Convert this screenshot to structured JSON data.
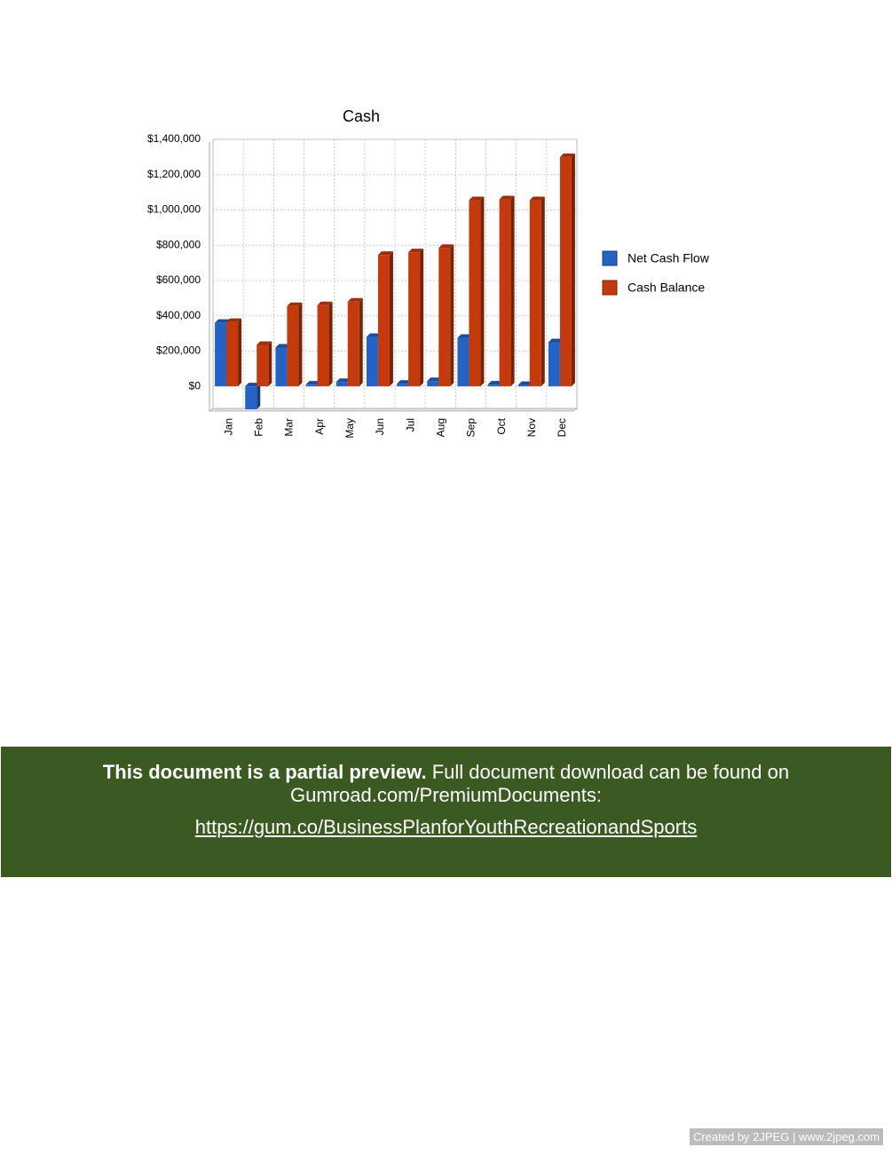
{
  "chart_data": {
    "type": "bar",
    "title": "Cash",
    "categories": [
      "Jan",
      "Feb",
      "Mar",
      "Apr",
      "May",
      "Jun",
      "Jul",
      "Aug",
      "Sep",
      "Oct",
      "Nov",
      "Dec"
    ],
    "series": [
      {
        "name": "Net Cash Flow",
        "color": "#2462c4",
        "values": [
          360000,
          -130000,
          220000,
          10000,
          25000,
          280000,
          15000,
          30000,
          275000,
          10000,
          8000,
          250000
        ]
      },
      {
        "name": "Cash Balance",
        "color": "#c43a0c",
        "values": [
          365000,
          235000,
          455000,
          460000,
          480000,
          745000,
          760000,
          785000,
          1055000,
          1060000,
          1055000,
          1300000
        ]
      }
    ],
    "ylim": [
      -130000,
      1400000
    ],
    "yticks": [
      {
        "value": 0,
        "label": "$0"
      },
      {
        "value": 200000,
        "label": "$200,000"
      },
      {
        "value": 400000,
        "label": "$400,000"
      },
      {
        "value": 600000,
        "label": "$600,000"
      },
      {
        "value": 800000,
        "label": "$800,000"
      },
      {
        "value": 1000000,
        "label": "$1,000,000"
      },
      {
        "value": 1200000,
        "label": "$1,200,000"
      },
      {
        "value": 1400000,
        "label": "$1,400,000"
      }
    ],
    "grid": true,
    "legend": "right"
  },
  "banner": {
    "bold": "This document is a partial preview.",
    "text": "Full document download can be found on Gumroad.com/PremiumDocuments:",
    "link": "https://gum.co/BusinessPlanforYouthRecreationandSports"
  },
  "watermark": "Created by 2JPEG | www.2jpeg.com"
}
